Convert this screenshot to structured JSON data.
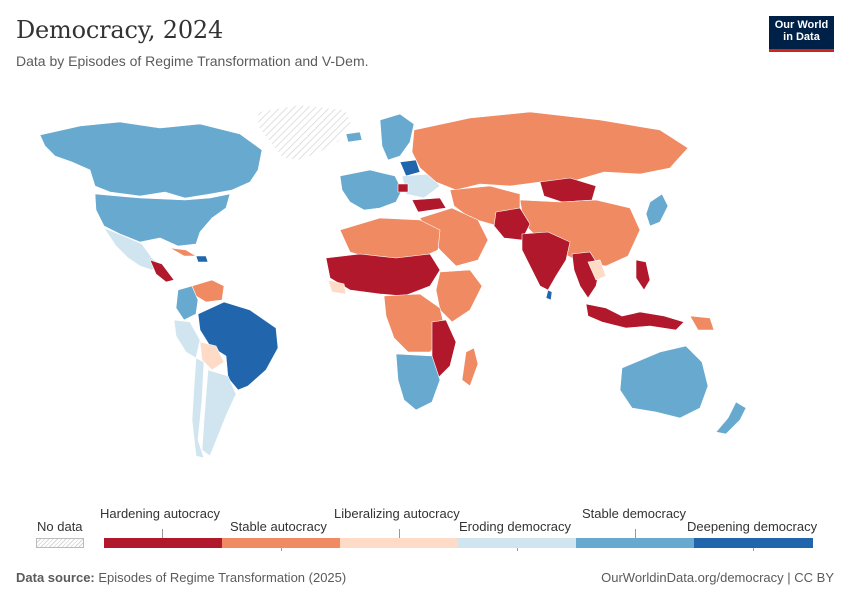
{
  "header": {
    "title": "Democracy, 2024",
    "subtitle": "Data by Episodes of Regime Transformation and V-Dem."
  },
  "logo": {
    "line1": "Our World",
    "line2": "in Data"
  },
  "legend": {
    "no_data": "No data",
    "categories": [
      {
        "label": "Hardening autocracy",
        "color": "#b2182b"
      },
      {
        "label": "Stable autocracy",
        "color": "#ef8a62"
      },
      {
        "label": "Liberalizing autocracy",
        "color": "#fddbc7"
      },
      {
        "label": "Eroding democracy",
        "color": "#d1e5f0"
      },
      {
        "label": "Stable democracy",
        "color": "#67a9cf"
      },
      {
        "label": "Deepening democracy",
        "color": "#2166ac"
      }
    ]
  },
  "colors": {
    "no_data_stroke": "#d6d6d6",
    "title": "#333333"
  },
  "footer": {
    "source_label": "Data source:",
    "source_text": "Episodes of Regime Transformation (2025)",
    "url": "OurWorldinData.org/democracy | CC BY"
  }
}
